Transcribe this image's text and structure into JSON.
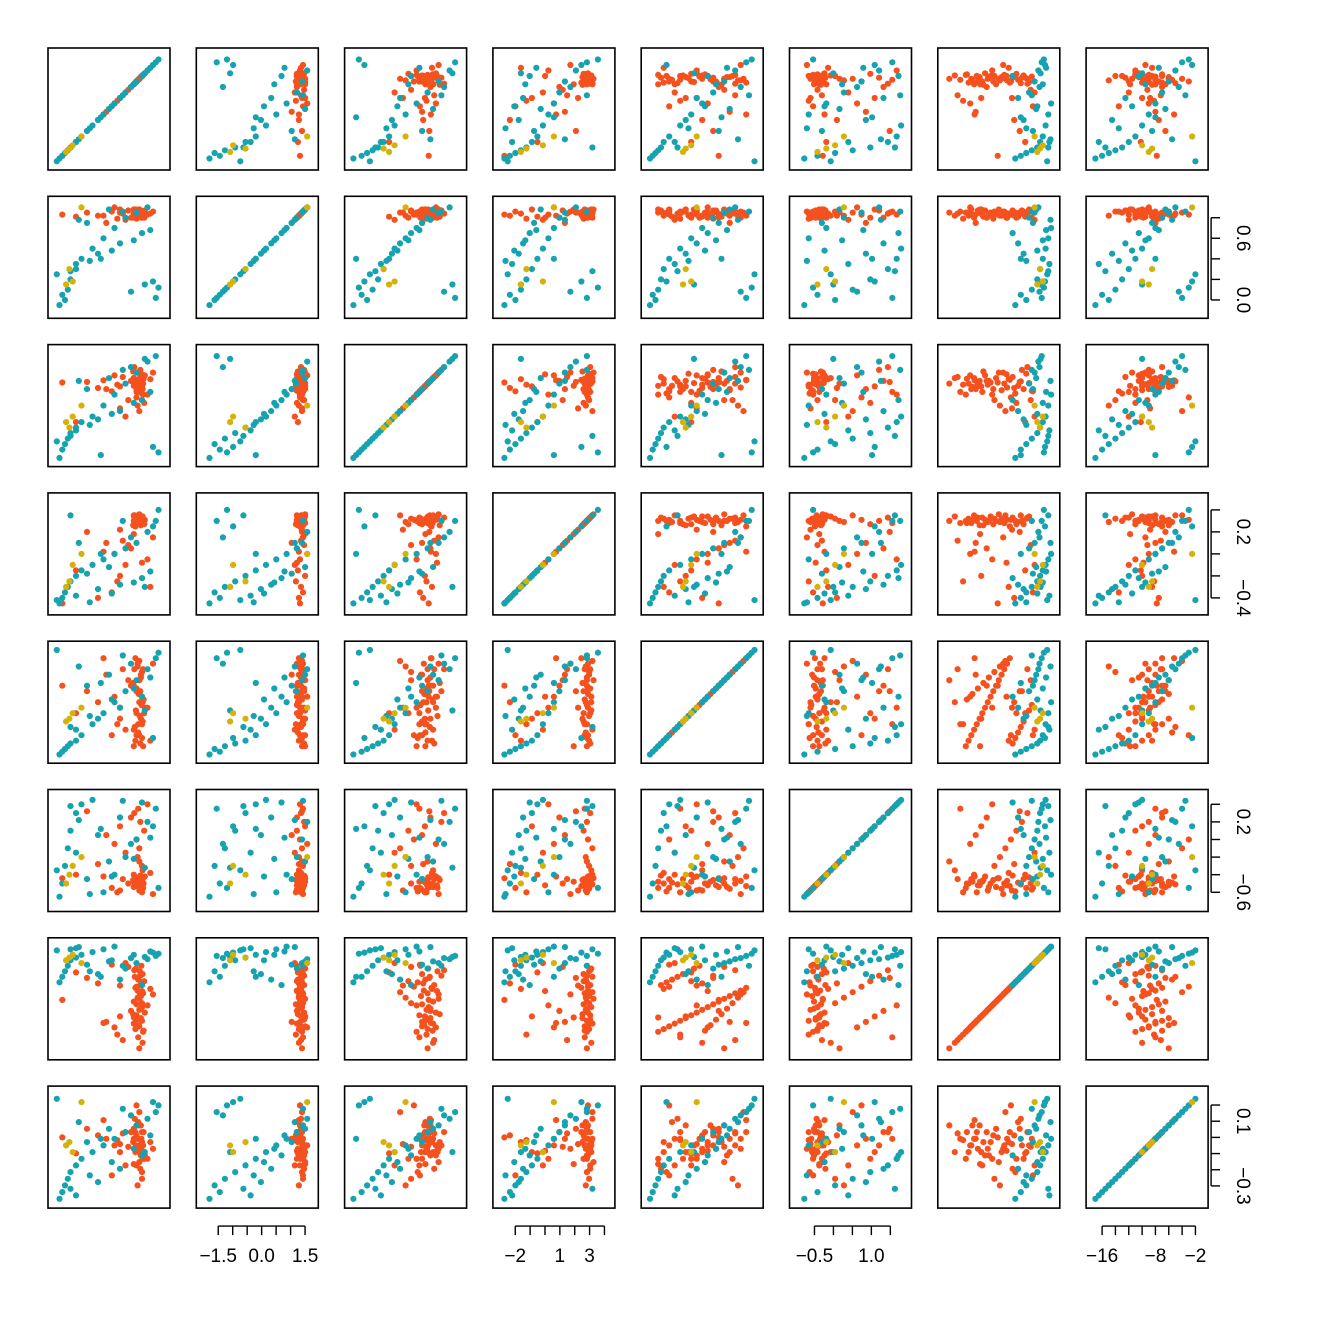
{
  "chart_data": {
    "type": "scatter",
    "title": "",
    "grid": false,
    "legend": "none",
    "n_variables": 8,
    "colors": {
      "orange": "#f4511e",
      "teal": "#17a2b0",
      "gold": "#d4b20a"
    },
    "groups": [
      "orange",
      "teal",
      "gold"
    ],
    "axes": {
      "bottom": [
        null,
        {
          "ticks": [
            -1.5,
            -1.0,
            -0.5,
            0.0,
            0.5,
            1.0,
            1.5
          ],
          "labels": [
            {
              "value": -1.5,
              "text": "−1.5"
            },
            {
              "value": 0.0,
              "text": "0.0"
            },
            {
              "value": 1.5,
              "text": "1.5"
            }
          ],
          "lim": [
            -2.05,
            1.75
          ]
        },
        null,
        {
          "ticks": [
            -2,
            -1,
            0,
            1,
            2,
            3,
            4
          ],
          "labels": [
            {
              "value": -2,
              "text": "−2"
            },
            {
              "value": 1,
              "text": "1"
            },
            {
              "value": 3,
              "text": "3"
            }
          ],
          "lim": [
            -3.1,
            4.3
          ]
        },
        null,
        {
          "ticks": [
            -0.5,
            0.0,
            0.5,
            1.0,
            1.5
          ],
          "labels": [
            {
              "value": -0.5,
              "text": "−0.5"
            },
            {
              "value": 1.0,
              "text": "1.0"
            }
          ],
          "lim": [
            -1.0,
            1.9
          ]
        },
        null,
        {
          "ticks": [
            -16,
            -14,
            -12,
            -10,
            -8,
            -6,
            -4,
            -2
          ],
          "labels": [
            {
              "value": -16,
              "text": "−16"
            },
            {
              "value": -8,
              "text": "−8"
            },
            {
              "value": -2,
              "text": "−2"
            }
          ],
          "lim": [
            -17.5,
            -1.0
          ]
        }
      ],
      "right": [
        null,
        {
          "ticks": [
            0.0,
            0.2,
            0.4,
            0.6,
            0.8
          ],
          "labels": [
            {
              "value": 0.0,
              "text": "0.0"
            },
            {
              "value": 0.6,
              "text": "0.6"
            }
          ],
          "lim": [
            -0.12,
            0.95
          ]
        },
        null,
        {
          "ticks": [
            -0.4,
            -0.2,
            0.0,
            0.2,
            0.4
          ],
          "labels": [
            {
              "value": -0.4,
              "text": "−0.4"
            },
            {
              "value": 0.2,
              "text": "0.2"
            }
          ],
          "lim": [
            -0.5,
            0.5
          ]
        },
        null,
        {
          "ticks": [
            -0.6,
            -0.4,
            -0.2,
            0.0,
            0.2,
            0.4
          ],
          "labels": [
            {
              "value": -0.6,
              "text": "−0.6"
            },
            {
              "value": 0.2,
              "text": "0.2"
            }
          ],
          "lim": [
            -0.75,
            0.5
          ]
        },
        null,
        {
          "ticks": [
            -0.3,
            -0.2,
            -0.1,
            0.0,
            0.1,
            0.2
          ],
          "labels": [
            {
              "value": -0.3,
              "text": "−0.3"
            },
            {
              "value": 0.1,
              "text": "0.1"
            }
          ],
          "lim": [
            -0.4,
            0.28
          ]
        }
      ]
    },
    "variables": [
      {
        "lim": [
          -1.0,
          1.0
        ],
        "orange": [
          0.62,
          0.48,
          0.55,
          0.45,
          0.6,
          0.58,
          0.5,
          0.65,
          0.55,
          0.6,
          0.5,
          0.45,
          0.55,
          0.58,
          0.62,
          0.52,
          0.48,
          0.57,
          0.6,
          0.53,
          0.47,
          0.61,
          0.56,
          0.49,
          0.59,
          0.63,
          0.54,
          0.5,
          0.44,
          0.58,
          0.6,
          0.52,
          0.55,
          0.5,
          0.64,
          0.57,
          0.46,
          0.53,
          0.61,
          0.55,
          0.3,
          0.1,
          -0.05,
          0.2,
          0.4,
          0.7,
          0.8,
          0.75,
          -0.2,
          -0.4,
          -0.6,
          0.35,
          0.15,
          0.25,
          0.05,
          -0.1,
          0.45,
          0.6,
          0.2,
          -0.85
        ],
        "teal": [
          -0.9,
          -0.85,
          -0.8,
          -0.75,
          -0.7,
          -0.6,
          -0.5,
          -0.3,
          -0.1,
          0.1,
          0.3,
          0.5,
          0.7,
          0.85,
          0.9,
          -0.95,
          -0.6,
          -0.2,
          0.2,
          0.6,
          -0.4,
          0.0,
          0.4,
          0.8,
          -0.7,
          -0.35,
          0.05,
          0.45,
          0.75,
          -0.55,
          0.25,
          0.65,
          -0.15
        ],
        "gold": [
          -0.78,
          -0.72,
          -0.66,
          -0.5
        ]
      },
      {
        "lim": [
          -0.12,
          0.95
        ],
        "orange": [
          0.85,
          0.82,
          0.88,
          0.8,
          0.84,
          0.86,
          0.83,
          0.87,
          0.81,
          0.85,
          0.79,
          0.84,
          0.88,
          0.82,
          0.86,
          0.8,
          0.83,
          0.87,
          0.85,
          0.81,
          0.84,
          0.86,
          0.82,
          0.88,
          0.8,
          0.85,
          0.83,
          0.87,
          0.81,
          0.84,
          0.86,
          0.82,
          0.85,
          0.83,
          0.8,
          0.87,
          0.84,
          0.86,
          0.82,
          0.85,
          0.78,
          0.9,
          0.75,
          0.88,
          0.8,
          0.83,
          0.86,
          0.84,
          0.82,
          0.85,
          0.81,
          0.87,
          0.79,
          0.84,
          0.86,
          0.82,
          0.88,
          0.8,
          0.85,
          0.83
        ],
        "teal": [
          -0.05,
          0.05,
          0.0,
          0.1,
          0.2,
          0.3,
          0.4,
          0.5,
          0.6,
          0.7,
          0.8,
          0.85,
          0.9,
          0.02,
          0.12,
          0.25,
          0.35,
          0.45,
          0.55,
          0.65,
          0.75,
          0.88,
          0.08,
          0.18,
          0.28,
          0.38,
          0.48,
          0.58,
          0.68,
          0.78,
          0.86,
          0.15,
          0.4
        ],
        "gold": [
          0.15,
          0.3,
          0.18,
          0.9
        ]
      },
      {
        "lim": [
          -1.0,
          1.0
        ],
        "orange": [
          0.2,
          0.4,
          0.3,
          0.5,
          0.35,
          0.45,
          0.25,
          0.55,
          0.38,
          0.42,
          0.3,
          0.5,
          0.6,
          0.28,
          0.4,
          0.33,
          0.47,
          0.52,
          0.22,
          0.36,
          0.44,
          0.3,
          0.58,
          0.41,
          0.27,
          0.49,
          0.34,
          0.39,
          0.62,
          0.45,
          0.1,
          0.0,
          -0.1,
          0.15,
          0.05,
          0.65,
          0.7,
          0.25,
          0.5,
          0.4,
          -0.2,
          0.55,
          0.3,
          0.35,
          0.45,
          0.2,
          0.6,
          0.48,
          0.32,
          0.43,
          -0.3,
          0.1,
          0.38,
          0.52,
          0.26,
          0.46,
          0.36,
          0.57,
          -0.05,
          0.42
        ],
        "teal": [
          -0.95,
          -0.8,
          -0.7,
          -0.6,
          -0.5,
          -0.4,
          -0.3,
          -0.2,
          0.0,
          0.2,
          0.4,
          0.6,
          0.8,
          0.9,
          -0.85,
          -0.65,
          -0.45,
          -0.25,
          -0.1,
          0.1,
          0.3,
          0.5,
          0.7,
          -0.75,
          -0.55,
          -0.35,
          -0.15,
          0.05,
          0.25,
          0.45,
          0.65,
          0.85,
          -0.9
        ],
        "gold": [
          -0.3,
          -0.4,
          -0.2,
          0.0
        ]
      },
      {
        "lim": [
          -0.5,
          0.5
        ],
        "orange": [
          0.3,
          0.32,
          0.28,
          0.35,
          0.3,
          0.26,
          0.33,
          0.31,
          0.29,
          0.34,
          0.27,
          0.3,
          0.36,
          0.32,
          0.28,
          0.31,
          0.25,
          0.33,
          0.3,
          0.29,
          0.35,
          0.27,
          0.32,
          0.34,
          0.3,
          0.28,
          0.31,
          0.33,
          0.26,
          0.3,
          0.32,
          0.29,
          0.35,
          0.31,
          0.27,
          0.3,
          0.33,
          0.28,
          0.34,
          0.3,
          -0.1,
          0.0,
          0.1,
          -0.2,
          0.05,
          -0.05,
          0.15,
          -0.3,
          -0.4,
          0.2,
          -0.15,
          0.08,
          -0.25,
          0.12,
          -0.35,
          0.02,
          0.18,
          -0.08,
          0.22,
          -0.45
        ],
        "teal": [
          -0.45,
          -0.4,
          -0.35,
          -0.3,
          -0.25,
          -0.2,
          -0.15,
          -0.1,
          -0.05,
          0.0,
          0.05,
          0.1,
          0.2,
          0.3,
          0.4,
          -0.42,
          -0.38,
          -0.32,
          -0.28,
          -0.22,
          -0.18,
          -0.12,
          0.15,
          0.25,
          0.35,
          -0.44,
          -0.36,
          -0.26,
          -0.16,
          0.1,
          0.3,
          -0.3,
          0.0
        ],
        "gold": [
          -0.3,
          -0.25,
          -0.1,
          0.0
        ]
      },
      {
        "lim": [
          -1.0,
          1.0
        ],
        "orange": [
          -0.8,
          -0.7,
          -0.6,
          -0.5,
          -0.4,
          -0.3,
          -0.2,
          -0.1,
          0.0,
          0.1,
          0.2,
          0.3,
          0.4,
          0.5,
          0.6,
          0.7,
          0.8,
          -0.75,
          -0.65,
          -0.55,
          -0.45,
          -0.35,
          -0.25,
          -0.15,
          -0.05,
          0.05,
          0.15,
          0.25,
          0.35,
          0.45,
          0.55,
          0.65,
          0.75,
          -0.6,
          -0.2,
          0.2,
          0.6,
          -0.4,
          0.0,
          0.4,
          -0.5,
          0.1,
          0.5,
          -0.3,
          0.3,
          -0.1,
          0.7,
          -0.7,
          0.0,
          0.2,
          -0.2,
          0.4,
          -0.4,
          0.6,
          -0.6,
          0.8,
          -0.8,
          0.1,
          -0.1,
          0.3
        ],
        "teal": [
          -0.95,
          -0.9,
          -0.85,
          -0.8,
          -0.75,
          -0.7,
          -0.6,
          -0.4,
          -0.2,
          0.0,
          0.2,
          0.4,
          0.6,
          0.8,
          0.9,
          0.95,
          -0.5,
          -0.3,
          -0.1,
          0.1,
          0.3,
          0.5,
          0.7,
          -0.65,
          -0.45,
          -0.25,
          0.05,
          0.25,
          0.45,
          0.65,
          0.85,
          -0.15,
          0.35
        ],
        "gold": [
          -0.35,
          -0.3,
          -0.2,
          -0.1
        ]
      },
      {
        "lim": [
          -0.75,
          0.5
        ],
        "orange": [
          -0.55,
          -0.5,
          -0.45,
          -0.4,
          -0.6,
          -0.52,
          -0.48,
          -0.42,
          -0.58,
          -0.5,
          -0.46,
          -0.54,
          -0.44,
          -0.56,
          -0.5,
          -0.47,
          -0.53,
          -0.41,
          -0.59,
          -0.49,
          -0.51,
          -0.45,
          -0.55,
          -0.43,
          -0.57,
          -0.5,
          -0.48,
          -0.52,
          -0.46,
          -0.54,
          -0.3,
          -0.2,
          -0.1,
          0.0,
          0.1,
          0.2,
          0.3,
          0.35,
          -0.35,
          -0.25,
          -0.15,
          -0.05,
          0.05,
          0.15,
          0.25,
          0.4,
          -0.62,
          -0.38,
          -0.28,
          0.32,
          -0.4,
          -0.5,
          -0.6,
          -0.45,
          -0.55,
          -0.42,
          -0.48,
          -0.52,
          -0.58,
          -0.44
        ],
        "teal": [
          -0.65,
          -0.5,
          -0.3,
          -0.1,
          0.1,
          0.3,
          0.4,
          0.45,
          -0.6,
          -0.4,
          -0.2,
          0.0,
          0.2,
          0.35,
          -0.55,
          -0.35,
          -0.15,
          0.05,
          0.25,
          0.42,
          -0.45,
          -0.25,
          -0.05,
          0.15,
          0.38,
          -0.62,
          -0.42,
          -0.22,
          0.02,
          0.22,
          0.44,
          -0.32,
          0.12
        ],
        "gold": [
          -0.5,
          -0.4,
          -0.3,
          -0.2
        ]
      },
      {
        "lim": [
          -1.0,
          1.0
        ],
        "orange": [
          -0.6,
          -0.55,
          -0.5,
          -0.45,
          -0.4,
          -0.35,
          -0.3,
          -0.25,
          -0.2,
          -0.15,
          -0.1,
          -0.05,
          0.0,
          0.05,
          0.1,
          0.15,
          0.2,
          0.25,
          0.3,
          0.35,
          0.4,
          0.45,
          0.5,
          0.55,
          0.6,
          -0.58,
          -0.48,
          -0.38,
          -0.28,
          -0.18,
          -0.08,
          0.02,
          0.12,
          0.22,
          0.32,
          0.42,
          0.52,
          -0.7,
          -0.8,
          -0.9,
          0.65,
          -0.52,
          -0.42,
          -0.32,
          -0.22,
          -0.12,
          0.08,
          0.18,
          0.28,
          0.38,
          0.48,
          0.58,
          -0.65,
          -0.75,
          0.62,
          -0.44,
          -0.34,
          0.14,
          0.24,
          -0.02
        ],
        "teal": [
          0.3,
          0.4,
          0.5,
          0.6,
          0.7,
          0.75,
          0.8,
          0.85,
          0.9,
          0.95,
          0.55,
          0.65,
          0.72,
          0.78,
          0.82,
          0.88,
          0.92,
          0.45,
          0.35,
          0.25,
          0.62,
          0.68,
          0.74,
          0.84,
          0.9,
          0.5,
          0.7,
          0.8,
          0.86,
          0.94,
          0.6,
          0.76,
          0.4
        ],
        "gold": [
          0.7,
          0.75,
          0.8,
          0.65
        ]
      },
      {
        "lim": [
          -17.5,
          -1.0
        ],
        "orange": [
          -11,
          -10,
          -9,
          -8,
          -7,
          -6,
          -12,
          -10.5,
          -9.5,
          -8.5,
          -7.5,
          -6.5,
          -11.5,
          -10,
          -9,
          -8,
          -7,
          -12.5,
          -13,
          -5.5,
          -5,
          -11,
          -10,
          -9,
          -8,
          -7,
          -6,
          -9.5,
          -8.5,
          -10.5,
          -14,
          -15,
          -4,
          -3,
          -11,
          -9,
          -7,
          -8,
          -10,
          -6,
          -12,
          -9,
          -8,
          -10,
          -7,
          -11,
          -9.5,
          -8.5,
          -7.5,
          -6.5,
          -10.2,
          -9.2,
          -8.2,
          -7.2,
          -13.5,
          -5.2,
          -11.8,
          -9.8,
          -8.8,
          -7.8
        ],
        "teal": [
          -17,
          -16,
          -15,
          -14,
          -13,
          -12,
          -11,
          -10,
          -9,
          -8,
          -7,
          -6,
          -5,
          -4,
          -3,
          -2,
          -16.5,
          -14.5,
          -12.5,
          -10.5,
          -8.5,
          -6.5,
          -4.5,
          -2.5,
          -15.5,
          -13.5,
          -11.5,
          -9.5,
          -7.5,
          -5.5,
          -3.5,
          -10,
          -8
        ],
        "gold": [
          -9,
          -8.5,
          -10,
          -2.5
        ]
      }
    ]
  }
}
